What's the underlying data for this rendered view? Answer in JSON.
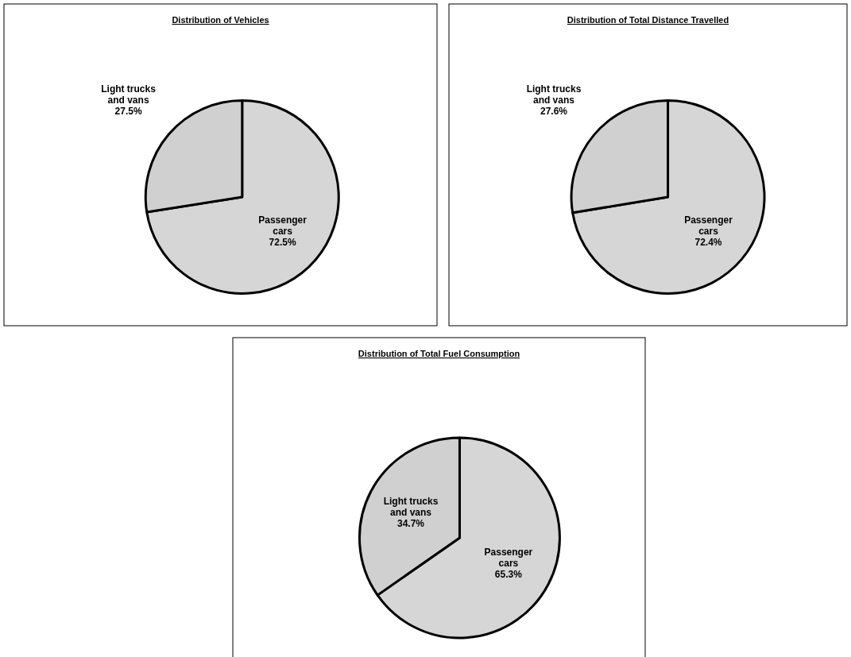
{
  "chart_data": [
    {
      "type": "pie",
      "title": "Distribution of Vehicles",
      "categories": [
        "Passenger cars",
        "Light trucks and vans"
      ],
      "values": [
        72.5,
        27.5
      ],
      "value_labels": [
        "72.5%",
        "27.5%"
      ],
      "colors": [
        "#d6d6d6",
        "#d0d0d0"
      ],
      "legend": false
    },
    {
      "type": "pie",
      "title": "Distribution of Total Distance Travelled",
      "categories": [
        "Passenger cars",
        "Light trucks and vans"
      ],
      "values": [
        72.4,
        27.6
      ],
      "value_labels": [
        "72.4%",
        "27.6%"
      ],
      "colors": [
        "#d6d6d6",
        "#d0d0d0"
      ],
      "legend": false
    },
    {
      "type": "pie",
      "title": "Distribution of Total Fuel Consumption",
      "categories": [
        "Passenger cars",
        "Light trucks and vans"
      ],
      "values": [
        65.3,
        34.7
      ],
      "value_labels": [
        "65.3%",
        "34.7%"
      ],
      "colors": [
        "#d6d6d6",
        "#d0d0d0"
      ],
      "legend": false
    }
  ]
}
